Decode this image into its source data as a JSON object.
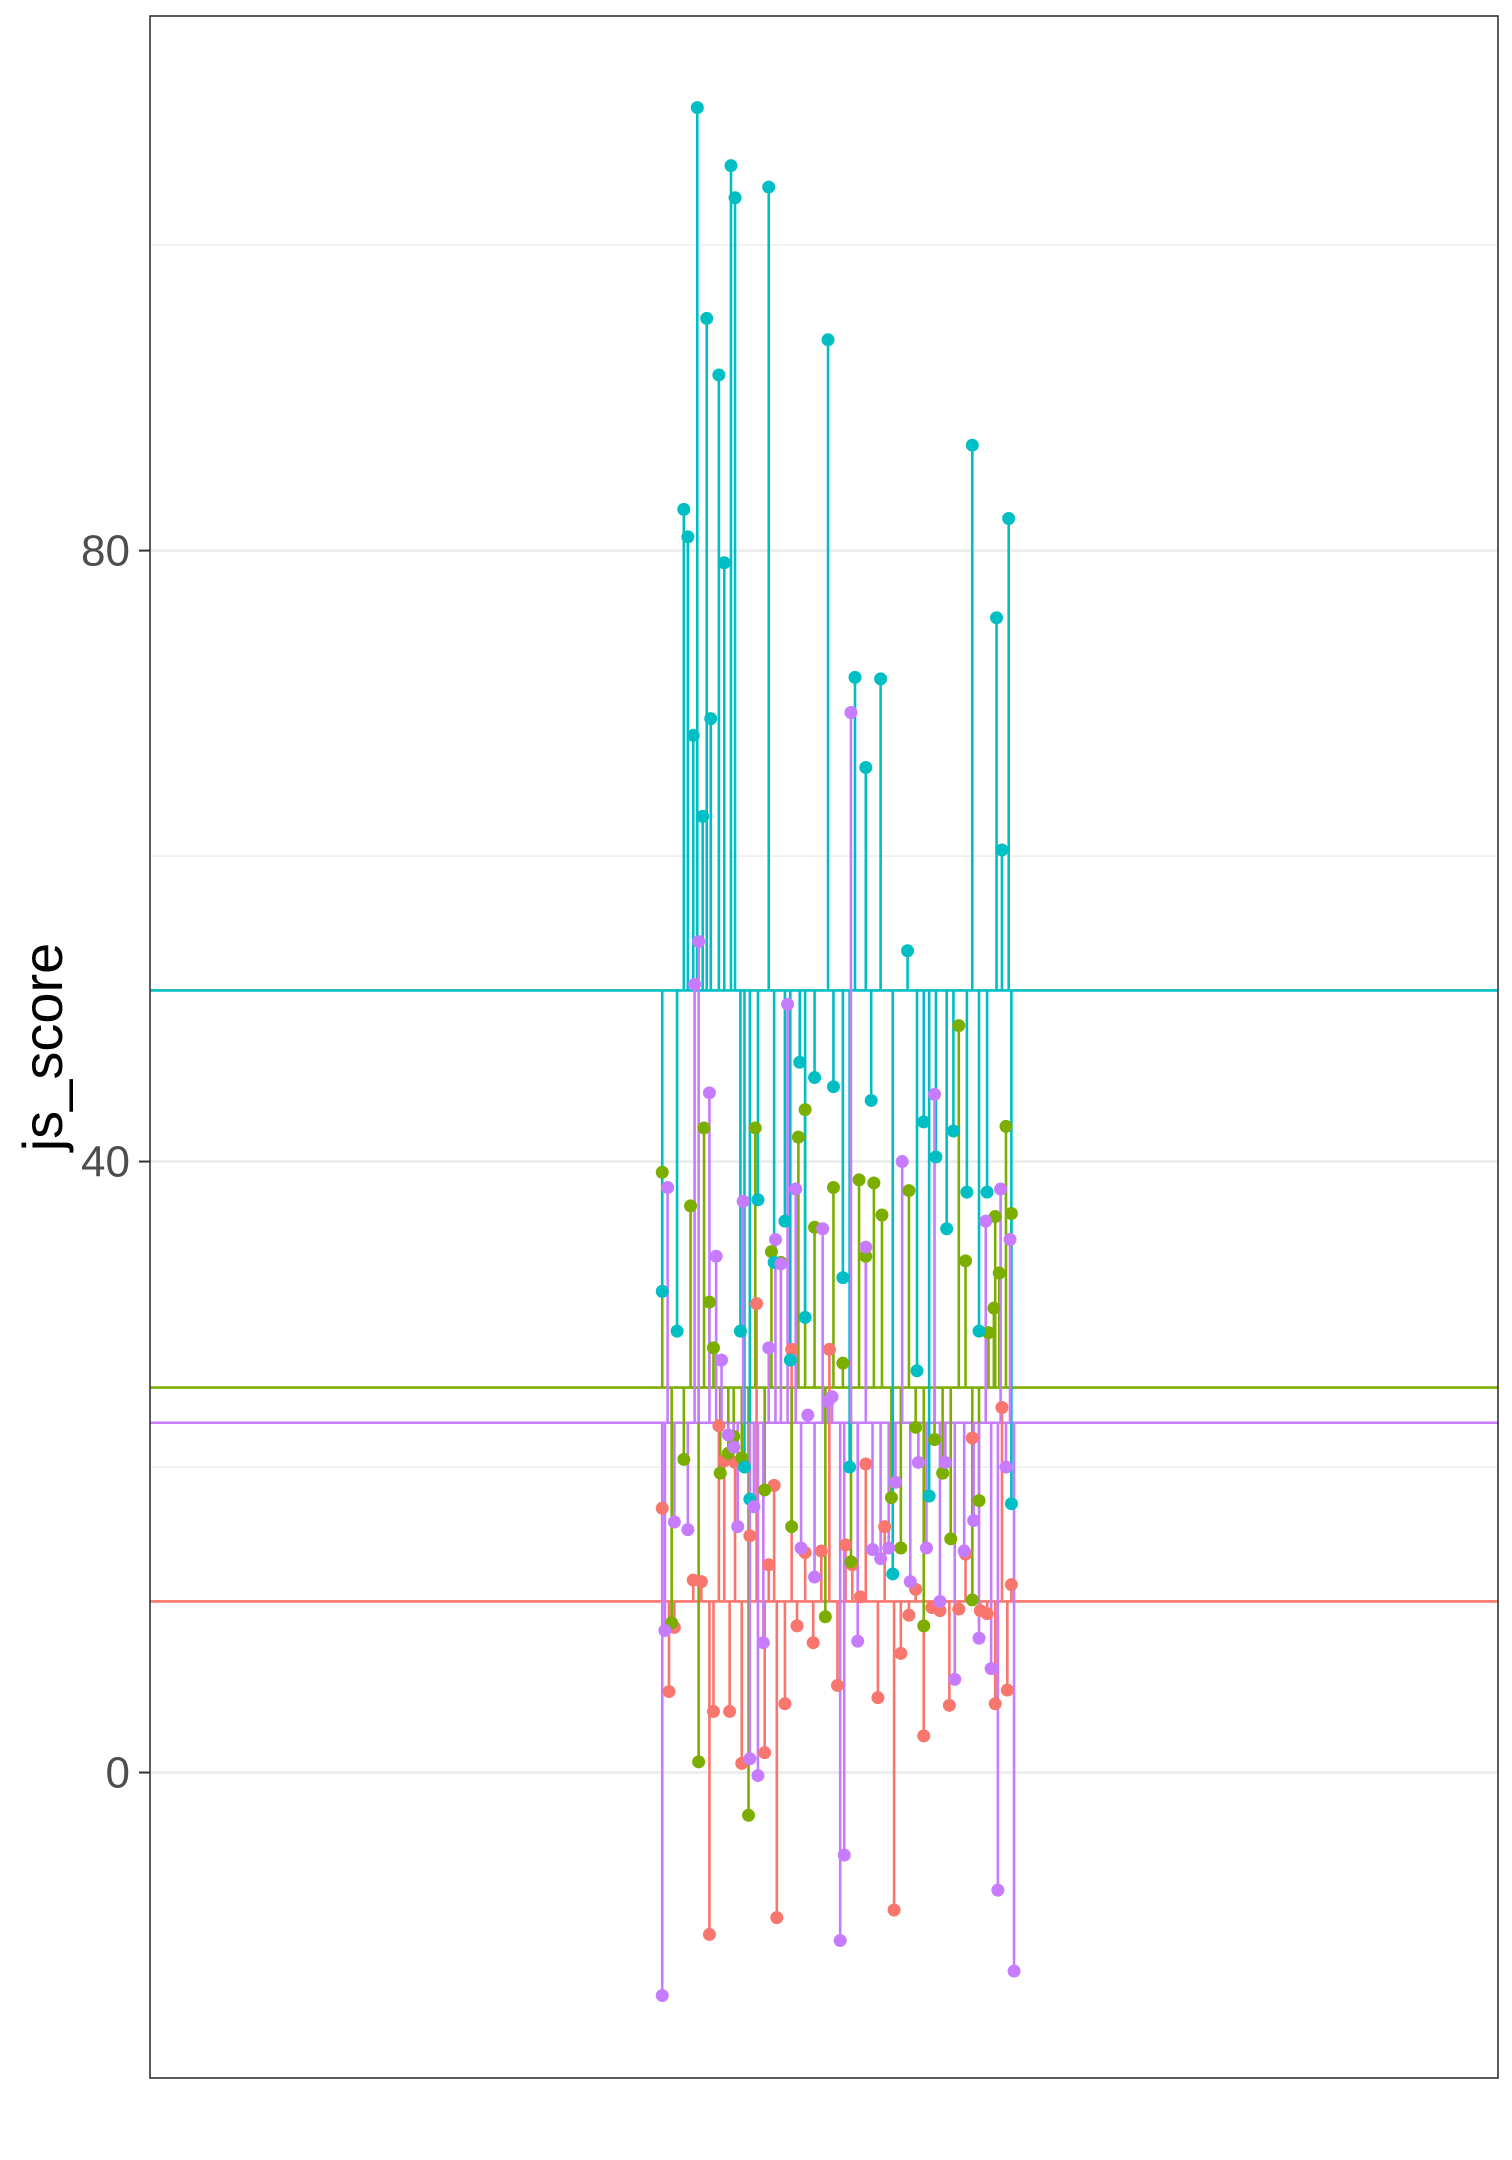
{
  "chart_data": {
    "type": "scatter",
    "ylabel": "js_score",
    "xlabel": "",
    "ylim": [
      -20,
      115
    ],
    "xlim": [
      0,
      100
    ],
    "y_ticks": [
      0,
      40,
      80
    ],
    "y_tick_labels": [
      "0",
      "40",
      "80"
    ],
    "grid": true,
    "theme": "bw",
    "series": [
      {
        "color": "#F8766D",
        "mean": 11.2,
        "points": [
          [
            38.0,
            17.3
          ],
          [
            38.5,
            5.3
          ],
          [
            38.9,
            9.5
          ],
          [
            40.3,
            12.6
          ],
          [
            40.9,
            12.5
          ],
          [
            41.5,
            -10.6
          ],
          [
            41.8,
            4.0
          ],
          [
            42.2,
            22.7
          ],
          [
            42.6,
            20.4
          ],
          [
            43.0,
            4.0
          ],
          [
            43.4,
            20.3
          ],
          [
            43.9,
            0.6
          ],
          [
            44.5,
            15.5
          ],
          [
            45.0,
            30.7
          ],
          [
            45.6,
            1.3
          ],
          [
            45.9,
            13.6
          ],
          [
            46.3,
            18.8
          ],
          [
            46.5,
            -9.5
          ],
          [
            47.1,
            4.5
          ],
          [
            47.6,
            27.7
          ],
          [
            48.0,
            9.6
          ],
          [
            48.6,
            14.4
          ],
          [
            49.2,
            8.5
          ],
          [
            49.8,
            14.5
          ],
          [
            50.4,
            27.7
          ],
          [
            51.0,
            5.7
          ],
          [
            51.6,
            14.9
          ],
          [
            52.1,
            13.6
          ],
          [
            52.7,
            11.5
          ],
          [
            53.1,
            20.2
          ],
          [
            54.0,
            4.9
          ],
          [
            54.5,
            16.1
          ],
          [
            55.2,
            -9.0
          ],
          [
            55.7,
            7.8
          ],
          [
            56.3,
            10.3
          ],
          [
            56.8,
            12.0
          ],
          [
            57.4,
            2.4
          ],
          [
            58.0,
            10.8
          ],
          [
            58.6,
            10.6
          ],
          [
            59.3,
            4.4
          ],
          [
            60.0,
            10.7
          ],
          [
            60.5,
            14.3
          ],
          [
            61.0,
            21.9
          ],
          [
            61.6,
            10.6
          ],
          [
            62.1,
            10.4
          ],
          [
            62.7,
            4.5
          ],
          [
            63.2,
            23.9
          ],
          [
            63.6,
            5.4
          ],
          [
            63.9,
            12.3
          ]
        ]
      },
      {
        "color": "#7CAE00",
        "mean": 25.2,
        "points": [
          [
            38.0,
            39.3
          ],
          [
            38.7,
            9.8
          ],
          [
            39.6,
            20.5
          ],
          [
            40.1,
            37.1
          ],
          [
            40.7,
            0.7
          ],
          [
            41.1,
            42.2
          ],
          [
            41.5,
            30.8
          ],
          [
            41.8,
            27.8
          ],
          [
            42.3,
            19.6
          ],
          [
            42.9,
            20.9
          ],
          [
            43.3,
            22.0
          ],
          [
            43.9,
            20.6
          ],
          [
            44.4,
            -2.8
          ],
          [
            44.9,
            42.2
          ],
          [
            45.6,
            18.5
          ],
          [
            46.1,
            34.1
          ],
          [
            46.8,
            33.4
          ],
          [
            47.6,
            16.1
          ],
          [
            48.1,
            41.6
          ],
          [
            48.6,
            43.4
          ],
          [
            49.3,
            35.7
          ],
          [
            50.1,
            10.2
          ],
          [
            50.7,
            38.3
          ],
          [
            51.4,
            26.8
          ],
          [
            52.0,
            13.8
          ],
          [
            52.6,
            38.8
          ],
          [
            53.1,
            33.8
          ],
          [
            53.7,
            38.6
          ],
          [
            54.3,
            36.5
          ],
          [
            55.0,
            18.0
          ],
          [
            55.7,
            14.7
          ],
          [
            56.3,
            38.1
          ],
          [
            56.8,
            22.6
          ],
          [
            57.4,
            9.6
          ],
          [
            58.2,
            21.8
          ],
          [
            58.8,
            19.6
          ],
          [
            59.4,
            15.3
          ],
          [
            60.0,
            48.9
          ],
          [
            60.5,
            33.5
          ],
          [
            61.0,
            11.3
          ],
          [
            61.5,
            17.8
          ],
          [
            62.2,
            28.8
          ],
          [
            62.7,
            36.4
          ],
          [
            63.0,
            32.7
          ],
          [
            63.5,
            42.3
          ],
          [
            63.9,
            36.6
          ],
          [
            62.6,
            30.4
          ]
        ]
      },
      {
        "color": "#00BFC4",
        "mean": 51.2,
        "points": [
          [
            38.0,
            31.5
          ],
          [
            39.1,
            28.9
          ],
          [
            39.6,
            82.7
          ],
          [
            39.9,
            80.9
          ],
          [
            40.3,
            67.9
          ],
          [
            40.6,
            109.0
          ],
          [
            41.0,
            62.6
          ],
          [
            41.3,
            95.2
          ],
          [
            41.6,
            69.0
          ],
          [
            42.2,
            91.5
          ],
          [
            42.6,
            79.2
          ],
          [
            43.1,
            105.2
          ],
          [
            43.4,
            103.1
          ],
          [
            43.8,
            28.9
          ],
          [
            44.1,
            20.0
          ],
          [
            44.5,
            17.9
          ],
          [
            45.1,
            37.5
          ],
          [
            45.9,
            103.8
          ],
          [
            46.3,
            33.4
          ],
          [
            47.1,
            36.1
          ],
          [
            47.5,
            27.0
          ],
          [
            48.2,
            46.5
          ],
          [
            48.6,
            29.8
          ],
          [
            49.3,
            45.5
          ],
          [
            50.3,
            93.8
          ],
          [
            50.7,
            44.9
          ],
          [
            51.4,
            32.4
          ],
          [
            51.9,
            20.0
          ],
          [
            52.3,
            71.7
          ],
          [
            53.1,
            65.8
          ],
          [
            53.5,
            44.0
          ],
          [
            54.2,
            71.6
          ],
          [
            55.1,
            13.0
          ],
          [
            56.2,
            53.8
          ],
          [
            56.9,
            26.3
          ],
          [
            57.4,
            42.6
          ],
          [
            57.8,
            18.1
          ],
          [
            58.3,
            40.3
          ],
          [
            59.1,
            35.6
          ],
          [
            59.6,
            42.0
          ],
          [
            60.6,
            38.0
          ],
          [
            61.0,
            86.9
          ],
          [
            61.5,
            28.9
          ],
          [
            62.1,
            38.0
          ],
          [
            62.8,
            75.6
          ],
          [
            63.2,
            60.4
          ],
          [
            63.7,
            82.1
          ],
          [
            63.9,
            17.6
          ]
        ]
      },
      {
        "color": "#C77CFF",
        "mean": 22.9,
        "points": [
          [
            38.0,
            -14.6
          ],
          [
            38.2,
            9.3
          ],
          [
            38.4,
            38.3
          ],
          [
            38.9,
            16.4
          ],
          [
            39.9,
            15.9
          ],
          [
            40.4,
            51.6
          ],
          [
            40.7,
            54.4
          ],
          [
            41.5,
            44.5
          ],
          [
            42.0,
            33.8
          ],
          [
            42.4,
            27.0
          ],
          [
            42.9,
            22.1
          ],
          [
            43.3,
            21.3
          ],
          [
            43.6,
            16.1
          ],
          [
            44.0,
            37.4
          ],
          [
            44.5,
            0.9
          ],
          [
            44.8,
            17.4
          ],
          [
            45.1,
            -0.2
          ],
          [
            45.5,
            8.5
          ],
          [
            45.9,
            27.8
          ],
          [
            46.4,
            34.9
          ],
          [
            46.8,
            33.3
          ],
          [
            47.3,
            50.3
          ],
          [
            47.9,
            38.2
          ],
          [
            48.3,
            14.7
          ],
          [
            48.8,
            23.4
          ],
          [
            49.3,
            12.8
          ],
          [
            49.9,
            35.6
          ],
          [
            50.3,
            24.3
          ],
          [
            50.6,
            24.6
          ],
          [
            51.2,
            -11.0
          ],
          [
            51.5,
            -5.4
          ],
          [
            52.0,
            69.4
          ],
          [
            52.5,
            8.6
          ],
          [
            53.1,
            34.4
          ],
          [
            53.6,
            14.6
          ],
          [
            54.2,
            14.0
          ],
          [
            54.8,
            14.7
          ],
          [
            55.3,
            19.0
          ],
          [
            55.8,
            40.0
          ],
          [
            56.4,
            12.5
          ],
          [
            57.0,
            20.3
          ],
          [
            57.6,
            14.7
          ],
          [
            58.2,
            44.4
          ],
          [
            58.6,
            11.2
          ],
          [
            59.0,
            20.3
          ],
          [
            59.7,
            6.1
          ],
          [
            60.4,
            14.5
          ],
          [
            61.1,
            16.5
          ],
          [
            61.5,
            8.8
          ],
          [
            62.0,
            36.1
          ],
          [
            62.4,
            6.8
          ],
          [
            62.9,
            -7.7
          ],
          [
            63.5,
            20.0
          ],
          [
            63.8,
            34.9
          ],
          [
            64.1,
            -13.0
          ],
          [
            63.1,
            38.2
          ]
        ]
      }
    ]
  }
}
